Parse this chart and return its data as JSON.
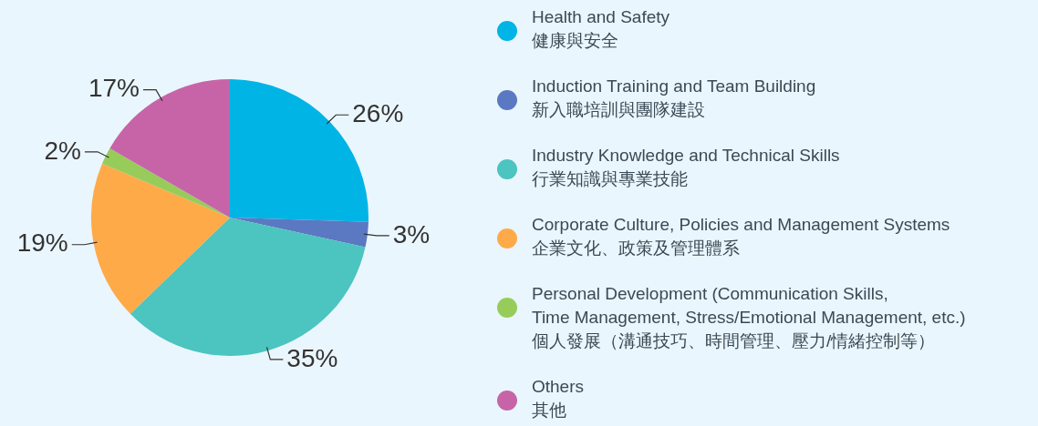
{
  "chart_data": {
    "type": "pie",
    "categories": [
      "Health and Safety\n健康與安全",
      "Induction Training and Team Building\n新入職培訓與團隊建設",
      "Industry Knowledge and Technical Skills\n行業知識與專業技能",
      "Corporate Culture, Policies and Management Systems\n企業文化、政策及管理體系",
      "Personal Development (Communication Skills,\nTime Management, Stress/Emotional Management, etc.)\n個人發展（溝通技巧、時間管理、壓力/情緒控制等）",
      "Others\n其他"
    ],
    "values": [
      26,
      3,
      35,
      19,
      2,
      17
    ],
    "value_labels": [
      "26%",
      "3%",
      "35%",
      "19%",
      "2%",
      "17%"
    ],
    "colors": [
      "#00b4e6",
      "#5b78c2",
      "#4cc4c0",
      "#ffaa48",
      "#97cc5a",
      "#c764a8"
    ],
    "legend": "right"
  }
}
